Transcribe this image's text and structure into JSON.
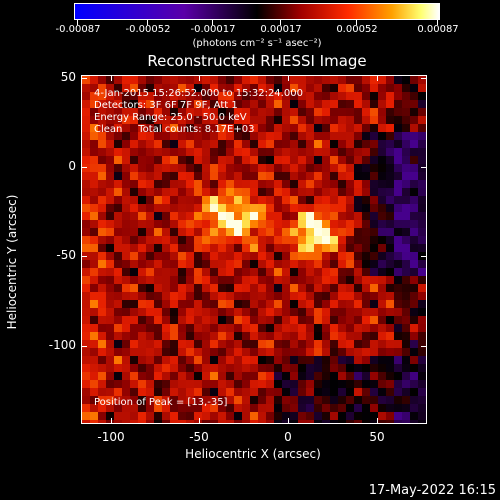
{
  "colorbar": {
    "tick_labels": [
      "-0.00087",
      "-0.00052",
      "-0.00017",
      "0.00017",
      "0.00052",
      "0.00087"
    ],
    "units": "(photons cm⁻² s⁻¹ asec⁻²)"
  },
  "title": "Reconstructed RHESSI Image",
  "info": {
    "line1": "4-Jan-2015 15:26:52.000 to 15:32:24.000",
    "line2": "Detectors: 3F 6F 7F 9F, Att 1",
    "line3": "Energy Range: 25.0 - 50.0 keV",
    "line4": "Clean     Total counts: 8.17E+03",
    "peak": "Position of Peak = [13,-35]"
  },
  "axes": {
    "xlabel": "Heliocentric X (arcsec)",
    "ylabel": "Heliocentric Y (arcsec)",
    "xticks": [
      "-100",
      "-50",
      "0",
      "50"
    ],
    "yticks": [
      "50",
      "0",
      "-50",
      "-100"
    ]
  },
  "footer": "17-May-2022 16:15",
  "colors": {
    "colormap": [
      "#0000ff",
      "#6a00b0",
      "#000000",
      "#8a0000",
      "#ff2200",
      "#ff9a00",
      "#ffff60",
      "#ffffff"
    ]
  }
}
